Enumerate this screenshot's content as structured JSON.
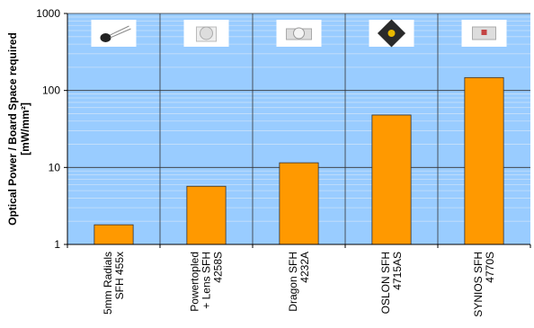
{
  "chart_data": {
    "type": "bar",
    "scale": "log",
    "categories": [
      [
        "5mm Radials",
        "SFH 455x"
      ],
      [
        "Powertopled",
        "+ Lens SFH",
        "4258S"
      ],
      [
        "Dragon SFH",
        "4232A"
      ],
      [
        "OSLON SFH",
        "4715AS"
      ],
      [
        "SYNIOS SFH",
        "4770S"
      ]
    ],
    "values": [
      1.8,
      5.7,
      11.5,
      48,
      147
    ],
    "ylim": [
      1,
      1000
    ],
    "ytick_labels": [
      "1",
      "10",
      "100",
      "1000"
    ],
    "ylabel": [
      "Optical Power / Board Space required",
      "[mW/mm²]"
    ],
    "grid": true,
    "product_images": [
      "radial-led-icon",
      "powertopled-lens-icon",
      "dragon-led-icon",
      "oslon-led-icon",
      "synios-led-icon"
    ],
    "colors": {
      "plot_background": "#99CCFF",
      "bar_fill": "#FF9900",
      "bar_stroke": "#333333",
      "grid_major": "#333333",
      "grid_minor": "#C8E0FA"
    }
  }
}
